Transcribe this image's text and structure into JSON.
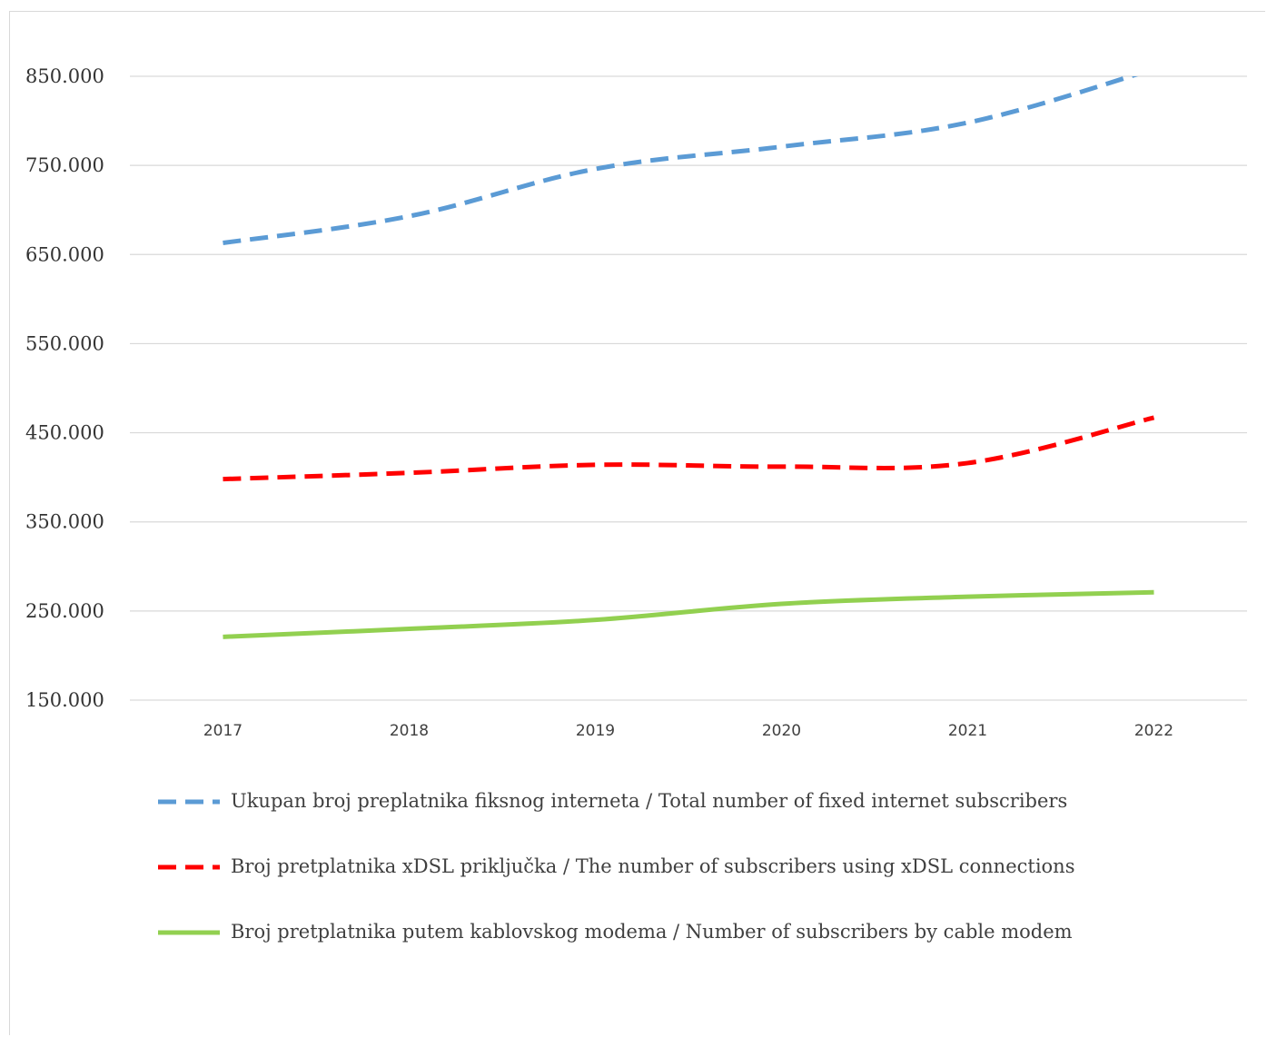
{
  "chart_data": {
    "type": "line",
    "categories": [
      "2017",
      "2018",
      "2019",
      "2020",
      "2021",
      "2022"
    ],
    "y_ticks": [
      "150.000",
      "250.000",
      "350.000",
      "450.000",
      "550.000",
      "650.000",
      "750.000",
      "850.000"
    ],
    "ylim": [
      150000,
      850000
    ],
    "grid": true,
    "legend_position": "bottom",
    "series": [
      {
        "name": "Ukupan broj preplatnika fiksnog interneta / Total number of fixed internet subscribers",
        "values": [
          663000,
          693000,
          746000,
          771000,
          798000,
          858000
        ],
        "color": "#5b9bd5",
        "dash": "dashed"
      },
      {
        "name": "Broj pretplatnika xDSL priključka / The number of subscribers using xDSL connections",
        "values": [
          398000,
          405000,
          414000,
          412000,
          416000,
          467000
        ],
        "color": "#ff0000",
        "dash": "dashed"
      },
      {
        "name": "Broj pretplatnika putem kablovskog modema / Number of subscribers by cable modem",
        "values": [
          221000,
          230000,
          240000,
          258000,
          266000,
          271000
        ],
        "color": "#92d050",
        "dash": "solid"
      }
    ]
  }
}
